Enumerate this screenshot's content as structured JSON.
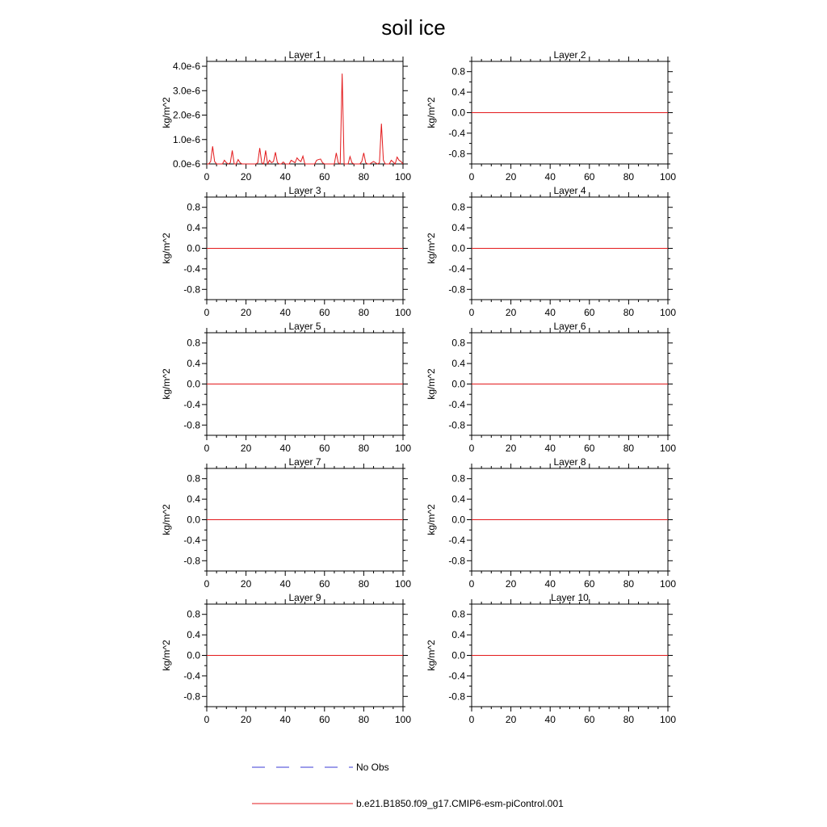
{
  "title": "soil ice",
  "legend": {
    "entries": [
      {
        "label": "No Obs",
        "style": "dashed",
        "color": "#3b3bd6"
      },
      {
        "label": "b.e21.B1850.f09_g17.CMIP6-esm-piControl.001",
        "style": "solid",
        "color": "#e31a1c"
      }
    ]
  },
  "chart_data": [
    {
      "type": "line",
      "title": "Layer 1",
      "ylabel": "kg/m^2",
      "xlim": [
        0,
        100
      ],
      "ylim": [
        0,
        4.2e-06
      ],
      "xticks": [
        "0",
        "20",
        "40",
        "60",
        "80",
        "100"
      ],
      "yticks": [
        {
          "value": 0,
          "label": "0.0e-6"
        },
        {
          "value": 1e-06,
          "label": "1.0e-6"
        },
        {
          "value": 2e-06,
          "label": "2.0e-6"
        },
        {
          "value": 3e-06,
          "label": "3.0e-6"
        },
        {
          "value": 4e-06,
          "label": "4.0e-6"
        }
      ],
      "series": [
        {
          "color": "#e31a1c",
          "x": [
            0,
            1,
            2,
            3,
            4,
            5,
            6,
            7,
            8,
            9,
            10,
            11,
            12,
            13,
            14,
            15,
            16,
            17,
            18,
            19,
            20,
            21,
            22,
            23,
            24,
            25,
            26,
            27,
            28,
            29,
            30,
            31,
            32,
            33,
            34,
            35,
            36,
            37,
            38,
            39,
            40,
            41,
            42,
            43,
            44,
            45,
            46,
            47,
            48,
            49,
            50,
            51,
            52,
            53,
            54,
            55,
            56,
            57,
            58,
            59,
            60,
            61,
            62,
            63,
            64,
            65,
            66,
            67,
            68,
            69,
            70,
            71,
            72,
            73,
            74,
            75,
            76,
            77,
            78,
            79,
            80,
            81,
            82,
            83,
            84,
            85,
            86,
            87,
            88,
            89,
            90,
            91,
            92,
            93,
            94,
            95,
            96,
            97,
            98,
            99,
            100
          ],
          "values": [
            0,
            0,
            1e-07,
            7.2e-07,
            1e-07,
            0,
            0,
            0,
            0,
            1.5e-07,
            5e-08,
            0,
            5e-08,
            5.5e-07,
            0,
            0,
            1.8e-07,
            5e-08,
            0,
            0,
            0,
            0,
            0,
            0,
            0,
            0,
            5e-08,
            6.5e-07,
            5e-08,
            0,
            5.5e-07,
            0,
            1.5e-07,
            5e-08,
            1e-07,
            4.8e-07,
            5e-08,
            0,
            0,
            8e-08,
            0,
            0,
            0,
            1.5e-07,
            1e-07,
            5e-08,
            2.5e-07,
            1.5e-07,
            1e-07,
            3.2e-07,
            0,
            0,
            0,
            0,
            0,
            0,
            1.5e-07,
            1.8e-07,
            2e-07,
            5e-08,
            0,
            0,
            0,
            0,
            0,
            0,
            4.5e-07,
            5e-08,
            0,
            3.7e-06,
            0,
            0,
            0,
            3e-07,
            5e-08,
            0,
            0,
            0,
            0,
            1e-07,
            4.5e-07,
            5e-08,
            0,
            0,
            5e-08,
            1e-07,
            5e-08,
            0,
            5e-08,
            1.65e-06,
            1.5e-07,
            0,
            0,
            0,
            1.5e-07,
            8e-08,
            0,
            2.8e-07,
            1.5e-07,
            1e-07,
            0
          ]
        }
      ]
    },
    {
      "type": "line",
      "title": "Layer 2",
      "ylabel": "kg/m^2",
      "xlim": [
        0,
        100
      ],
      "ylim": [
        -1,
        1
      ],
      "xticks": [
        "0",
        "20",
        "40",
        "60",
        "80",
        "100"
      ],
      "yticks": [
        {
          "value": -0.8,
          "label": "-0.8"
        },
        {
          "value": -0.4,
          "label": "-0.4"
        },
        {
          "value": 0,
          "label": "0.0"
        },
        {
          "value": 0.4,
          "label": "0.4"
        },
        {
          "value": 0.8,
          "label": "0.8"
        }
      ],
      "series": [
        {
          "color": "#e31a1c",
          "x": [
            0,
            100
          ],
          "values": [
            0,
            0
          ]
        }
      ]
    },
    {
      "type": "line",
      "title": "Layer 3",
      "ylabel": "kg/m^2",
      "xlim": [
        0,
        100
      ],
      "ylim": [
        -1,
        1
      ],
      "xticks": [
        "0",
        "20",
        "40",
        "60",
        "80",
        "100"
      ],
      "yticks": [
        {
          "value": -0.8,
          "label": "-0.8"
        },
        {
          "value": -0.4,
          "label": "-0.4"
        },
        {
          "value": 0,
          "label": "0.0"
        },
        {
          "value": 0.4,
          "label": "0.4"
        },
        {
          "value": 0.8,
          "label": "0.8"
        }
      ],
      "series": [
        {
          "color": "#e31a1c",
          "x": [
            0,
            100
          ],
          "values": [
            0,
            0
          ]
        }
      ]
    },
    {
      "type": "line",
      "title": "Layer 4",
      "ylabel": "kg/m^2",
      "xlim": [
        0,
        100
      ],
      "ylim": [
        -1,
        1
      ],
      "xticks": [
        "0",
        "20",
        "40",
        "60",
        "80",
        "100"
      ],
      "yticks": [
        {
          "value": -0.8,
          "label": "-0.8"
        },
        {
          "value": -0.4,
          "label": "-0.4"
        },
        {
          "value": 0,
          "label": "0.0"
        },
        {
          "value": 0.4,
          "label": "0.4"
        },
        {
          "value": 0.8,
          "label": "0.8"
        }
      ],
      "series": [
        {
          "color": "#e31a1c",
          "x": [
            0,
            100
          ],
          "values": [
            0,
            0
          ]
        }
      ]
    },
    {
      "type": "line",
      "title": "Layer 5",
      "ylabel": "kg/m^2",
      "xlim": [
        0,
        100
      ],
      "ylim": [
        -1,
        1
      ],
      "xticks": [
        "0",
        "20",
        "40",
        "60",
        "80",
        "100"
      ],
      "yticks": [
        {
          "value": -0.8,
          "label": "-0.8"
        },
        {
          "value": -0.4,
          "label": "-0.4"
        },
        {
          "value": 0,
          "label": "0.0"
        },
        {
          "value": 0.4,
          "label": "0.4"
        },
        {
          "value": 0.8,
          "label": "0.8"
        }
      ],
      "series": [
        {
          "color": "#e31a1c",
          "x": [
            0,
            100
          ],
          "values": [
            0,
            0
          ]
        }
      ]
    },
    {
      "type": "line",
      "title": "Layer 6",
      "ylabel": "kg/m^2",
      "xlim": [
        0,
        100
      ],
      "ylim": [
        -1,
        1
      ],
      "xticks": [
        "0",
        "20",
        "40",
        "60",
        "80",
        "100"
      ],
      "yticks": [
        {
          "value": -0.8,
          "label": "-0.8"
        },
        {
          "value": -0.4,
          "label": "-0.4"
        },
        {
          "value": 0,
          "label": "0.0"
        },
        {
          "value": 0.4,
          "label": "0.4"
        },
        {
          "value": 0.8,
          "label": "0.8"
        }
      ],
      "series": [
        {
          "color": "#e31a1c",
          "x": [
            0,
            100
          ],
          "values": [
            0,
            0
          ]
        }
      ]
    },
    {
      "type": "line",
      "title": "Layer 7",
      "ylabel": "kg/m^2",
      "xlim": [
        0,
        100
      ],
      "ylim": [
        -1,
        1
      ],
      "xticks": [
        "0",
        "20",
        "40",
        "60",
        "80",
        "100"
      ],
      "yticks": [
        {
          "value": -0.8,
          "label": "-0.8"
        },
        {
          "value": -0.4,
          "label": "-0.4"
        },
        {
          "value": 0,
          "label": "0.0"
        },
        {
          "value": 0.4,
          "label": "0.4"
        },
        {
          "value": 0.8,
          "label": "0.8"
        }
      ],
      "series": [
        {
          "color": "#e31a1c",
          "x": [
            0,
            100
          ],
          "values": [
            0,
            0
          ]
        }
      ]
    },
    {
      "type": "line",
      "title": "Layer 8",
      "ylabel": "kg/m^2",
      "xlim": [
        0,
        100
      ],
      "ylim": [
        -1,
        1
      ],
      "xticks": [
        "0",
        "20",
        "40",
        "60",
        "80",
        "100"
      ],
      "yticks": [
        {
          "value": -0.8,
          "label": "-0.8"
        },
        {
          "value": -0.4,
          "label": "-0.4"
        },
        {
          "value": 0,
          "label": "0.0"
        },
        {
          "value": 0.4,
          "label": "0.4"
        },
        {
          "value": 0.8,
          "label": "0.8"
        }
      ],
      "series": [
        {
          "color": "#e31a1c",
          "x": [
            0,
            100
          ],
          "values": [
            0,
            0
          ]
        }
      ]
    },
    {
      "type": "line",
      "title": "Layer 9",
      "ylabel": "kg/m^2",
      "xlim": [
        0,
        100
      ],
      "ylim": [
        -1,
        1
      ],
      "xticks": [
        "0",
        "20",
        "40",
        "60",
        "80",
        "100"
      ],
      "yticks": [
        {
          "value": -0.8,
          "label": "-0.8"
        },
        {
          "value": -0.4,
          "label": "-0.4"
        },
        {
          "value": 0,
          "label": "0.0"
        },
        {
          "value": 0.4,
          "label": "0.4"
        },
        {
          "value": 0.8,
          "label": "0.8"
        }
      ],
      "series": [
        {
          "color": "#e31a1c",
          "x": [
            0,
            100
          ],
          "values": [
            0,
            0
          ]
        }
      ]
    },
    {
      "type": "line",
      "title": "Layer 10",
      "ylabel": "kg/m^2",
      "xlim": [
        0,
        100
      ],
      "ylim": [
        -1,
        1
      ],
      "xticks": [
        "0",
        "20",
        "40",
        "60",
        "80",
        "100"
      ],
      "yticks": [
        {
          "value": -0.8,
          "label": "-0.8"
        },
        {
          "value": -0.4,
          "label": "-0.4"
        },
        {
          "value": 0,
          "label": "0.0"
        },
        {
          "value": 0.4,
          "label": "0.4"
        },
        {
          "value": 0.8,
          "label": "0.8"
        }
      ],
      "series": [
        {
          "color": "#e31a1c",
          "x": [
            0,
            100
          ],
          "values": [
            0,
            0
          ]
        }
      ]
    }
  ]
}
